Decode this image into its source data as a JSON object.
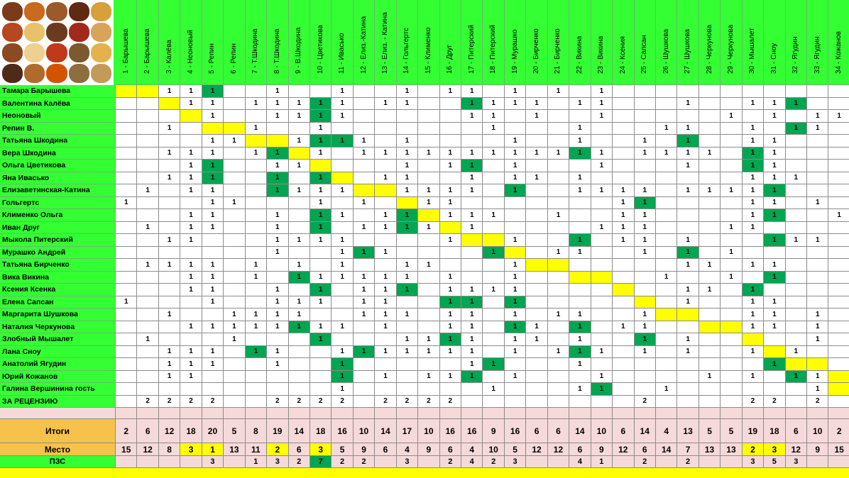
{
  "columns": [
    "1 - Барышева",
    "2 - Барышева",
    "3 - Калёва",
    "4 - Неоновый",
    "5 - Репин",
    "6 - Репин",
    "7 - Т.Шкодина",
    "8 - Т.Шкодина",
    "9 - В.Шкодина",
    "10 - Цветикова",
    "11 - Ивасько",
    "12 - Елиз.-Катина",
    "13 - Елиз. - Катина",
    "14 - Гольгертс",
    "15 - Клименко",
    "16 - Друг",
    "17 - Питерский",
    "18 - Питерский",
    "19 - Мурашко",
    "20 - Бирченко",
    "21 - Бирченко",
    "22 - Викина",
    "23 - Викина",
    "24 - Ксения",
    "25 - Сапсан",
    "26 - Шушкова",
    "27 - Шушкова",
    "28 - Черкунова",
    "29 - Черкунова",
    "30 - Мышалет",
    "31 - Сноу",
    "32 - Ягудин",
    "33 - Ягудин",
    "34 - Кожанов"
  ],
  "rows": [
    {
      "name": "Тамара Барышева",
      "cells": {
        "3": "1",
        "4": "1",
        "5": "1",
        "8": "1",
        "11": "1",
        "14": "1",
        "16": "1",
        "17": "1",
        "19": "1",
        "21": "1",
        "23": "1"
      },
      "yellow": [
        1,
        2
      ],
      "green": [
        5
      ]
    },
    {
      "name": "Валентина Калёва",
      "cells": {
        "4": "1",
        "5": "1",
        "7": "1",
        "8": "1",
        "9": "1",
        "10": "1",
        "11": "1",
        "13": "1",
        "14": "1",
        "17": "1",
        "18": "1",
        "19": "1",
        "20": "1",
        "22": "1",
        "23": "1",
        "27": "1",
        "30": "1",
        "31": "1",
        "32": "1"
      },
      "yellow": [
        3
      ],
      "green": [
        10,
        17,
        32
      ]
    },
    {
      "name": "Неоновый",
      "cells": {
        "5": "1",
        "8": "1",
        "9": "1",
        "10": "1",
        "11": "1",
        "17": "1",
        "18": "1",
        "20": "1",
        "23": "1",
        "29": "1",
        "31": "1",
        "33": "1",
        "34": "1"
      },
      "yellow": [
        4
      ],
      "green": [
        10
      ]
    },
    {
      "name": "Репин В.",
      "cells": {
        "3": "1",
        "7": "1",
        "10": "1",
        "18": "1",
        "22": "1",
        "26": "1",
        "27": "1",
        "30": "1",
        "32": "1",
        "33": "1"
      },
      "yellow": [
        5,
        6
      ],
      "green": [
        32
      ]
    },
    {
      "name": "Татьяна Шкодина",
      "cells": {
        "5": "1",
        "6": "1",
        "9": "1",
        "10": "1",
        "11": "1",
        "12": "1",
        "14": "1",
        "19": "1",
        "22": "1",
        "25": "1",
        "27": "1",
        "30": "1",
        "31": "1"
      },
      "yellow": [
        7,
        8
      ],
      "green": [
        10,
        11,
        27
      ]
    },
    {
      "name": "Вера Шкодина",
      "cells": {
        "3": "1",
        "4": "1",
        "5": "1",
        "7": "1",
        "8": "1",
        "10": "1",
        "12": "1",
        "13": "1",
        "14": "1",
        "15": "1",
        "16": "1",
        "17": "1",
        "18": "1",
        "19": "1",
        "20": "1",
        "21": "1",
        "22": "1",
        "23": "1",
        "25": "1",
        "26": "1",
        "27": "1",
        "28": "1",
        "30": "1",
        "31": "1"
      },
      "yellow": [
        9
      ],
      "green": [
        8,
        22,
        30
      ]
    },
    {
      "name": "Ольга Цветикова",
      "cells": {
        "4": "1",
        "5": "1",
        "8": "1",
        "9": "1",
        "14": "1",
        "16": "1",
        "17": "1",
        "19": "1",
        "23": "1",
        "27": "1",
        "30": "1",
        "31": "1"
      },
      "yellow": [
        10
      ],
      "green": [
        5,
        17,
        30
      ]
    },
    {
      "name": "Яна Ивасько",
      "cells": {
        "3": "1",
        "4": "1",
        "5": "1",
        "8": "1",
        "10": "1",
        "13": "1",
        "14": "1",
        "17": "1",
        "19": "1",
        "20": "1",
        "22": "1",
        "30": "1",
        "31": "1",
        "32": "1"
      },
      "yellow": [
        11
      ],
      "green": [
        5,
        8,
        10
      ]
    },
    {
      "name": "Елизаветинская-Катина",
      "cells": {
        "2": "1",
        "4": "1",
        "5": "1",
        "8": "1",
        "9": "1",
        "10": "1",
        "11": "1",
        "14": "1",
        "15": "1",
        "16": "1",
        "17": "1",
        "19": "1",
        "22": "1",
        "23": "1",
        "24": "1",
        "25": "1",
        "27": "1",
        "28": "1",
        "29": "1",
        "30": "1",
        "31": "1"
      },
      "yellow": [
        12,
        13
      ],
      "green": [
        8,
        19,
        31
      ]
    },
    {
      "name": "Гольгертс",
      "cells": {
        "1": "1",
        "5": "1",
        "6": "1",
        "10": "1",
        "12": "1",
        "15": "1",
        "16": "1",
        "24": "1",
        "25": "1",
        "30": "1",
        "31": "1",
        "33": "1"
      },
      "yellow": [
        14
      ],
      "green": [
        25
      ]
    },
    {
      "name": "Клименко Ольга",
      "cells": {
        "4": "1",
        "5": "1",
        "8": "1",
        "10": "1",
        "11": "1",
        "13": "1",
        "14": "1",
        "16": "1",
        "17": "1",
        "18": "1",
        "21": "1",
        "24": "1",
        "25": "1",
        "30": "1",
        "31": "1",
        "34": "1"
      },
      "yellow": [
        15
      ],
      "green": [
        10,
        14,
        31
      ]
    },
    {
      "name": "Иван Друг",
      "cells": {
        "2": "1",
        "4": "1",
        "5": "1",
        "8": "1",
        "10": "1",
        "12": "1",
        "13": "1",
        "14": "1",
        "15": "1",
        "17": "1",
        "23": "1",
        "24": "1",
        "25": "1",
        "29": "1",
        "30": "1"
      },
      "yellow": [
        16
      ],
      "green": [
        10,
        14
      ]
    },
    {
      "name": "Мыкола Питерский",
      "cells": {
        "3": "1",
        "4": "1",
        "8": "1",
        "9": "1",
        "10": "1",
        "11": "1",
        "16": "1",
        "19": "1",
        "22": "1",
        "24": "1",
        "25": "1",
        "27": "1",
        "31": "1",
        "32": "1",
        "33": "1"
      },
      "yellow": [
        17,
        18
      ],
      "green": [
        22,
        31
      ]
    },
    {
      "name": "Мурашко Андрей",
      "cells": {
        "8": "1",
        "11": "1",
        "12": "1",
        "13": "1",
        "18": "1",
        "21": "1",
        "22": "1",
        "25": "1",
        "27": "1",
        "29": "1"
      },
      "yellow": [
        19
      ],
      "green": [
        12,
        18,
        27
      ]
    },
    {
      "name": "Татьяна Бирченко",
      "cells": {
        "2": "1",
        "3": "1",
        "4": "1",
        "5": "1",
        "7": "1",
        "9": "1",
        "11": "1",
        "14": "1",
        "15": "1",
        "19": "1",
        "27": "1",
        "28": "1",
        "30": "1",
        "31": "1"
      },
      "yellow": [
        20,
        21
      ],
      "green": []
    },
    {
      "name": "Вика Викина",
      "cells": {
        "4": "1",
        "5": "1",
        "7": "1",
        "9": "1",
        "10": "1",
        "11": "1",
        "12": "1",
        "13": "1",
        "14": "1",
        "16": "1",
        "19": "1",
        "26": "1",
        "29": "1",
        "31": "1"
      },
      "yellow": [
        22,
        23
      ],
      "green": [
        9,
        31
      ]
    },
    {
      "name": "Ксения Ксенка",
      "cells": {
        "4": "1",
        "5": "1",
        "8": "1",
        "10": "1",
        "12": "1",
        "13": "1",
        "14": "1",
        "16": "1",
        "17": "1",
        "18": "1",
        "19": "1",
        "27": "1",
        "28": "1",
        "30": "1"
      },
      "yellow": [
        24
      ],
      "green": [
        10,
        14,
        30
      ]
    },
    {
      "name": "Елена Сапсан",
      "cells": {
        "1": "1",
        "5": "1",
        "8": "1",
        "9": "1",
        "10": "1",
        "12": "1",
        "13": "1",
        "16": "1",
        "17": "1",
        "19": "1",
        "27": "1",
        "30": "1",
        "31": "1"
      },
      "yellow": [
        25
      ],
      "green": [
        16,
        17,
        19
      ]
    },
    {
      "name": "Маргарита Шушкова",
      "cells": {
        "3": "1",
        "6": "1",
        "7": "1",
        "8": "1",
        "9": "1",
        "12": "1",
        "13": "1",
        "14": "1",
        "16": "1",
        "17": "1",
        "19": "1",
        "21": "1",
        "22": "1",
        "25": "1",
        "30": "1",
        "31": "1",
        "33": "1"
      },
      "yellow": [
        26,
        27
      ],
      "green": []
    },
    {
      "name": "Наталия Черкунова",
      "cells": {
        "4": "1",
        "5": "1",
        "6": "1",
        "7": "1",
        "8": "1",
        "9": "1",
        "10": "1",
        "11": "1",
        "13": "1",
        "16": "1",
        "17": "1",
        "19": "1",
        "20": "1",
        "22": "1",
        "24": "1",
        "25": "1",
        "30": "1",
        "31": "1",
        "33": "1"
      },
      "yellow": [
        28,
        29
      ],
      "green": [
        9,
        19,
        22
      ]
    },
    {
      "name": "Злобный Мышалет",
      "cells": {
        "2": "1",
        "6": "1",
        "10": "1",
        "14": "1",
        "15": "1",
        "16": "1",
        "17": "1",
        "19": "1",
        "20": "1",
        "22": "1",
        "25": "1",
        "27": "1",
        "33": "1"
      },
      "yellow": [
        30
      ],
      "green": [
        10,
        16,
        25
      ]
    },
    {
      "name": "Лана Сноу",
      "cells": {
        "3": "1",
        "4": "1",
        "5": "1",
        "7": "1",
        "8": "1",
        "11": "1",
        "12": "1",
        "13": "1",
        "14": "1",
        "15": "1",
        "16": "1",
        "17": "1",
        "19": "1",
        "21": "1",
        "22": "1",
        "23": "1",
        "25": "1",
        "27": "1",
        "30": "1",
        "32": "1"
      },
      "yellow": [
        31
      ],
      "green": [
        7,
        12,
        22
      ]
    },
    {
      "name": "Анатолий Ягудин",
      "cells": {
        "3": "1",
        "4": "1",
        "5": "1",
        "8": "1",
        "11": "1",
        "17": "1",
        "18": "1",
        "22": "1",
        "31": "1"
      },
      "yellow": [
        32,
        33
      ],
      "green": [
        11,
        18,
        31
      ]
    },
    {
      "name": "Юрий Кожанов",
      "cells": {
        "3": "1",
        "4": "1",
        "11": "1",
        "13": "1",
        "15": "1",
        "16": "1",
        "17": "1",
        "19": "1",
        "23": "1",
        "28": "1",
        "30": "1",
        "32": "1",
        "33": "1"
      },
      "yellow": [
        34
      ],
      "green": [
        11,
        17,
        32
      ]
    },
    {
      "name": "Галина Вершинина гость",
      "cells": {
        "11": "1",
        "18": "1",
        "22": "1",
        "23": "1",
        "26": "1",
        "33": "1"
      },
      "yellow": [
        34
      ],
      "green": [
        23
      ]
    },
    {
      "name": "ЗА РЕЦЕНЗИЮ",
      "cells": {
        "2": "2",
        "3": "2",
        "4": "2",
        "5": "2",
        "8": "2",
        "9": "2",
        "10": "2",
        "11": "2",
        "13": "2",
        "14": "2",
        "15": "2",
        "16": "2",
        "25": "2",
        "30": "2",
        "31": "2",
        "33": "2"
      },
      "yellow": [],
      "green": []
    }
  ],
  "totals": {
    "label": "Итоги",
    "values": [
      "2",
      "6",
      "12",
      "18",
      "20",
      "5",
      "8",
      "19",
      "14",
      "18",
      "16",
      "10",
      "14",
      "17",
      "10",
      "16",
      "16",
      "9",
      "16",
      "6",
      "6",
      "14",
      "10",
      "6",
      "14",
      "4",
      "13",
      "5",
      "5",
      "19",
      "18",
      "6",
      "10",
      "2"
    ]
  },
  "place": {
    "label": "Место",
    "values": [
      "15",
      "12",
      "8",
      "3",
      "1",
      "13",
      "11",
      "2",
      "6",
      "3",
      "5",
      "9",
      "6",
      "4",
      "9",
      "6",
      "4",
      "10",
      "5",
      "12",
      "12",
      "6",
      "9",
      "12",
      "6",
      "14",
      "7",
      "13",
      "13",
      "2",
      "3",
      "12",
      "9",
      "15"
    ],
    "yellow": [
      4,
      5,
      8,
      10,
      30,
      31
    ]
  },
  "pzs": {
    "label": "ПЗС",
    "values": [
      "",
      "",
      "",
      "",
      "3",
      "",
      "1",
      "3",
      "2",
      "7",
      "2",
      "2",
      "",
      "3",
      "",
      "2",
      "4",
      "2",
      "3",
      "",
      "",
      "4",
      "1",
      "",
      "2",
      "",
      "2",
      "",
      "",
      "3",
      "5",
      "3",
      "",
      ""
    ],
    "green": [
      10
    ]
  },
  "colors": {
    "green": "#33ff33",
    "dark_green": "#00a651",
    "yellow": "#ffff00",
    "pink": "#f6d9d9",
    "orange": "#f7c24a"
  },
  "header_image": {
    "icon": "spices-photo-icon"
  }
}
